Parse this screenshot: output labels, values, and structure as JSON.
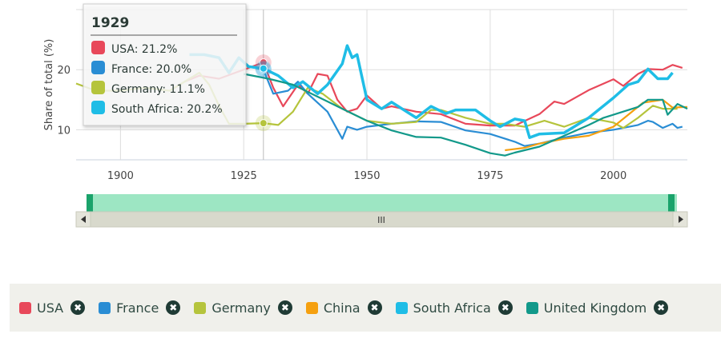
{
  "chart_data": {
    "type": "line",
    "ylabel": "Share of total (%)",
    "xlabel": "",
    "xlim": [
      1891,
      2015
    ],
    "ylim": [
      5,
      30
    ],
    "x_ticks": [
      "1900",
      "1925",
      "1950",
      "1975",
      "2000"
    ],
    "y_ticks": [
      "10",
      "20"
    ],
    "grid": true,
    "series": [
      {
        "name": "USA",
        "color": "#e8485a",
        "points": [
          [
            1913,
            18
          ],
          [
            1916,
            19
          ],
          [
            1920,
            18.5
          ],
          [
            1925,
            20
          ],
          [
            1929,
            21.2
          ],
          [
            1931,
            17
          ],
          [
            1933,
            13.9
          ],
          [
            1936,
            17.5
          ],
          [
            1938,
            16
          ],
          [
            1940,
            19.3
          ],
          [
            1942,
            19
          ],
          [
            1944,
            15
          ],
          [
            1946,
            13
          ],
          [
            1948,
            13.5
          ],
          [
            1950,
            15.7
          ],
          [
            1953,
            13.5
          ],
          [
            1955,
            13.9
          ],
          [
            1960,
            13
          ],
          [
            1965,
            12.6
          ],
          [
            1970,
            11
          ],
          [
            1975,
            10.7
          ],
          [
            1980,
            10.7
          ],
          [
            1985,
            12.6
          ],
          [
            1988,
            14.7
          ],
          [
            1990,
            14.3
          ],
          [
            1995,
            16.6
          ],
          [
            2000,
            18.4
          ],
          [
            2002,
            17.3
          ],
          [
            2005,
            19.3
          ],
          [
            2007,
            20.1
          ],
          [
            2010,
            20
          ],
          [
            2012,
            20.8
          ],
          [
            2014,
            20.3
          ]
        ]
      },
      {
        "name": "France",
        "color": "#2a8dd4",
        "points": [
          [
            1926,
            20.5
          ],
          [
            1929,
            20
          ],
          [
            1931,
            16
          ],
          [
            1934,
            16.5
          ],
          [
            1936,
            18
          ],
          [
            1938,
            16
          ],
          [
            1942,
            13
          ],
          [
            1945,
            8.5
          ],
          [
            1946,
            10.5
          ],
          [
            1948,
            10
          ],
          [
            1950,
            10.5
          ],
          [
            1955,
            11
          ],
          [
            1960,
            11.4
          ],
          [
            1965,
            11.3
          ],
          [
            1970,
            9.9
          ],
          [
            1975,
            9.3
          ],
          [
            1980,
            8
          ],
          [
            1982,
            7.3
          ],
          [
            1985,
            7.7
          ],
          [
            1990,
            8.7
          ],
          [
            1995,
            9.5
          ],
          [
            2000,
            10
          ],
          [
            2005,
            10.8
          ],
          [
            2007,
            11.5
          ],
          [
            2008,
            11.3
          ],
          [
            2010,
            10.3
          ],
          [
            2012,
            11
          ],
          [
            2013,
            10.3
          ],
          [
            2014,
            10.5
          ]
        ]
      },
      {
        "name": "Germany",
        "color": "#b5c43c",
        "points": [
          [
            1891,
            17.7
          ],
          [
            1895,
            16.5
          ],
          [
            1900,
            16.5
          ],
          [
            1905,
            17
          ],
          [
            1910,
            16.5
          ],
          [
            1916,
            19.5
          ],
          [
            1918,
            17.5
          ],
          [
            1920,
            14
          ],
          [
            1922,
            11
          ],
          [
            1925,
            11
          ],
          [
            1929,
            11.1
          ],
          [
            1932,
            10.8
          ],
          [
            1935,
            13
          ],
          [
            1938,
            17
          ],
          [
            1941,
            16
          ],
          [
            1945,
            13.5
          ],
          [
            1950,
            11.5
          ],
          [
            1955,
            11
          ],
          [
            1960,
            11.3
          ],
          [
            1963,
            13.3
          ],
          [
            1965,
            13.3
          ],
          [
            1970,
            12
          ],
          [
            1975,
            11
          ],
          [
            1978,
            11
          ],
          [
            1982,
            10.5
          ],
          [
            1986,
            11.5
          ],
          [
            1990,
            10.5
          ],
          [
            1995,
            12
          ],
          [
            2000,
            11.2
          ],
          [
            2002,
            10.3
          ],
          [
            2005,
            12
          ],
          [
            2008,
            14
          ],
          [
            2010,
            13.5
          ],
          [
            2013,
            13.5
          ]
        ]
      },
      {
        "name": "China",
        "color": "#f5a00f",
        "points": [
          [
            1978,
            6.6
          ],
          [
            1982,
            7
          ],
          [
            1985,
            7.7
          ],
          [
            1990,
            8.5
          ],
          [
            1995,
            9
          ],
          [
            2000,
            10.5
          ],
          [
            2003,
            12.5
          ],
          [
            2006,
            14.5
          ],
          [
            2010,
            15
          ],
          [
            2012,
            13.7
          ],
          [
            2015,
            13.8
          ]
        ]
      },
      {
        "name": "South Africa",
        "color": "#1fbde6",
        "points": [
          [
            1914,
            22.5
          ],
          [
            1917,
            22.5
          ],
          [
            1920,
            22
          ],
          [
            1922,
            19.5
          ],
          [
            1924,
            22
          ],
          [
            1926,
            20.5
          ],
          [
            1929,
            20.2
          ],
          [
            1932,
            19
          ],
          [
            1935,
            17
          ],
          [
            1937,
            18
          ],
          [
            1940,
            16
          ],
          [
            1942,
            17.5
          ],
          [
            1945,
            21
          ],
          [
            1946,
            24
          ],
          [
            1947,
            22
          ],
          [
            1948,
            22.5
          ],
          [
            1950,
            15
          ],
          [
            1953,
            13.5
          ],
          [
            1955,
            14.6
          ],
          [
            1960,
            12
          ],
          [
            1963,
            13.9
          ],
          [
            1966,
            12.7
          ],
          [
            1968,
            13.3
          ],
          [
            1972,
            13.3
          ],
          [
            1975,
            11.5
          ],
          [
            1977,
            10.5
          ],
          [
            1980,
            11.8
          ],
          [
            1982,
            11.5
          ],
          [
            1983,
            8.7
          ],
          [
            1985,
            9.3
          ],
          [
            1990,
            9.5
          ],
          [
            1995,
            12
          ],
          [
            2000,
            15.3
          ],
          [
            2003,
            17.5
          ],
          [
            2005,
            18
          ],
          [
            2007,
            20.1
          ],
          [
            2009,
            18.5
          ],
          [
            2011,
            18.5
          ],
          [
            2012,
            19.5
          ]
        ]
      },
      {
        "name": "United Kingdom",
        "color": "#12998a",
        "points": [
          [
            1925,
            19.3
          ],
          [
            1930,
            18.5
          ],
          [
            1935,
            17.5
          ],
          [
            1940,
            15.5
          ],
          [
            1945,
            13.5
          ],
          [
            1950,
            11.5
          ],
          [
            1955,
            9.9
          ],
          [
            1960,
            8.8
          ],
          [
            1965,
            8.7
          ],
          [
            1970,
            7.5
          ],
          [
            1975,
            6.1
          ],
          [
            1978,
            5.7
          ],
          [
            1980,
            6.2
          ],
          [
            1985,
            7.2
          ],
          [
            1990,
            9
          ],
          [
            1995,
            10.8
          ],
          [
            1998,
            12
          ],
          [
            2000,
            12.5
          ],
          [
            2005,
            13.8
          ],
          [
            2007,
            15
          ],
          [
            2010,
            15
          ],
          [
            2011,
            12.5
          ],
          [
            2013,
            14.3
          ],
          [
            2015,
            13.5
          ]
        ]
      }
    ],
    "tooltip": {
      "title": "1929",
      "year": 1929,
      "rows": [
        {
          "label": "USA: 21.2%",
          "color": "#e8485a"
        },
        {
          "label": "France: 20.0%",
          "color": "#2a8dd4"
        },
        {
          "label": "Germany: 11.1%",
          "color": "#b5c43c"
        },
        {
          "label": "South Africa: 20.2%",
          "color": "#1fbde6"
        }
      ]
    }
  },
  "navigator": {
    "scroll_label": "III"
  },
  "legend": [
    {
      "label": "USA",
      "color": "#e8485a"
    },
    {
      "label": "France",
      "color": "#2a8dd4"
    },
    {
      "label": "Germany",
      "color": "#b5c43c"
    },
    {
      "label": "China",
      "color": "#f5a00f"
    },
    {
      "label": "South Africa",
      "color": "#1fbde6"
    },
    {
      "label": "United Kingdom",
      "color": "#12998a"
    }
  ],
  "legend_remove_icon": "✖"
}
